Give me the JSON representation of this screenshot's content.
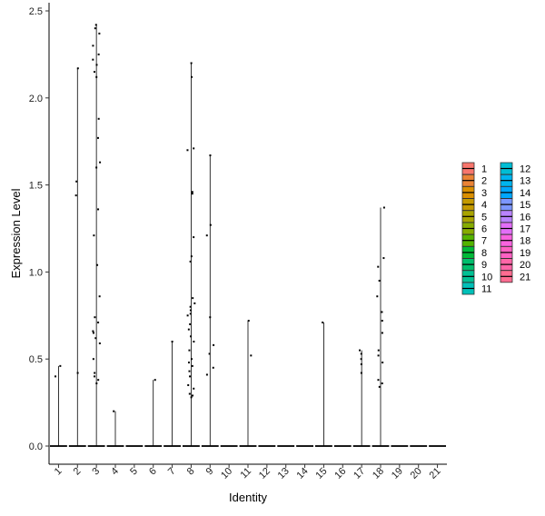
{
  "chart_data": {
    "type": "violin",
    "xlabel": "Identity",
    "ylabel": "Expression Level",
    "ylim": [
      -0.1,
      2.52
    ],
    "y_ticks": [
      0.0,
      0.5,
      1.0,
      1.5,
      2.0,
      2.5
    ],
    "y_tick_labels": [
      "0.0",
      "0.5",
      "1.0",
      "1.5",
      "2.0",
      "2.5"
    ],
    "categories": [
      "1",
      "2",
      "3",
      "4",
      "5",
      "6",
      "7",
      "8",
      "9",
      "10",
      "11",
      "12",
      "13",
      "14",
      "15",
      "16",
      "17",
      "18",
      "19",
      "20",
      "21"
    ],
    "max_values": [
      0.46,
      2.17,
      2.42,
      0.2,
      0,
      0.38,
      0.6,
      2.2,
      1.67,
      0,
      0.72,
      0,
      0,
      0,
      0.71,
      0,
      0.55,
      1.37,
      0,
      0,
      0
    ],
    "points": [
      [
        0.46,
        0.4
      ],
      [
        2.17,
        1.52,
        1.44,
        0.42
      ],
      [
        2.42,
        2.4,
        2.37,
        2.3,
        2.25,
        2.22,
        2.19,
        2.15,
        2.12,
        1.88,
        1.77,
        1.63,
        1.6,
        1.36,
        1.21,
        1.04,
        0.86,
        0.74,
        0.71,
        0.66,
        0.65,
        0.62,
        0.59,
        0.5,
        0.42,
        0.4,
        0.38,
        0.36
      ],
      [
        0.2
      ],
      [],
      [
        0.38
      ],
      [
        0.6
      ],
      [
        2.2,
        2.12,
        1.71,
        1.7,
        1.46,
        1.45,
        1.2,
        1.09,
        1.06,
        0.85,
        0.82,
        0.8,
        0.78,
        0.76,
        0.75,
        0.7,
        0.67,
        0.63,
        0.6,
        0.55,
        0.5,
        0.48,
        0.46,
        0.43,
        0.4,
        0.35,
        0.33,
        0.3,
        0.29,
        0.28
      ],
      [
        1.67,
        1.27,
        1.21,
        0.74,
        0.58,
        0.53,
        0.45,
        0.41
      ],
      [],
      [
        0.72,
        0.52
      ],
      [],
      [],
      [],
      [
        0.71
      ],
      [],
      [
        0.55,
        0.53,
        0.5,
        0.47,
        0.42
      ],
      [
        1.37,
        1.08,
        1.03,
        0.95,
        0.86,
        0.77,
        0.72,
        0.65,
        0.55,
        0.52,
        0.48,
        0.38,
        0.36,
        0.34
      ],
      [],
      [],
      []
    ],
    "colors": [
      "#F8766D",
      "#EB8335",
      "#DA8F00",
      "#C49A00",
      "#A9A400",
      "#86AC00",
      "#53B400",
      "#00BA38",
      "#00BE6C",
      "#00C094",
      "#00C0B8",
      "#00BDD4",
      "#00B4EF",
      "#00A7FF",
      "#7C96FF",
      "#B983FF",
      "#E26EF7",
      "#F863DF",
      "#FF61C3",
      "#FF66A8",
      "#FF6C91"
    ],
    "legend_position": "right",
    "grid": false
  }
}
